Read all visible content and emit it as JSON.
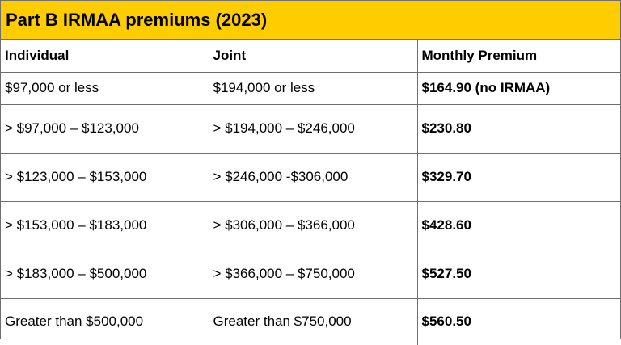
{
  "title": "Part B IRMAA premiums (2023)",
  "columns": {
    "individual": "Individual",
    "joint": "Joint",
    "premium": "Monthly Premium"
  },
  "rows": [
    {
      "individual": "$97,000 or less",
      "joint": "$194,000 or less",
      "premium": "$164.90 (no IRMAA)"
    },
    {
      "individual": "> $97,000 – $123,000",
      "joint": "> $194,000 – $246,000",
      "premium": "$230.80"
    },
    {
      "individual": "> $123,000 – $153,000",
      "joint": "> $246,000 -$306,000",
      "premium": "$329.70"
    },
    {
      "individual": "> $153,000 – $183,000",
      "joint": "> $306,000 – $366,000",
      "premium": "$428.60"
    },
    {
      "individual": "> $183,000 – $500,000",
      "joint": "> $366,000 – $750,000",
      "premium": "$527.50"
    },
    {
      "individual": "Greater than $500,000",
      "joint": "Greater than $750,000",
      "premium": "$560.50"
    }
  ],
  "colors": {
    "title_background": "#ffcc00",
    "border": "#6f6f6f"
  }
}
